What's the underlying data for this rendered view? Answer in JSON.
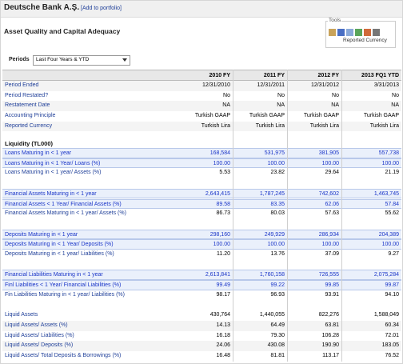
{
  "header": {
    "company": "Deutsche Bank A.Ş.",
    "portfolio_link": "[Add to portfolio]",
    "title": "Asset Quality and Capital Adequacy",
    "tools_label": "Tools",
    "tools_currency": "Reported Currency",
    "periods_label": "Periods",
    "periods_value": "Last Four Years & YTD"
  },
  "table": {
    "columns": [
      "2010 FY",
      "2011 FY",
      "2012 FY",
      "2013 FQ1 YTD"
    ],
    "period_rows": [
      {
        "label": "Period Ended",
        "values": [
          "12/31/2010",
          "12/31/2011",
          "12/31/2012",
          "3/31/2013"
        ]
      },
      {
        "label": "Period Restated?",
        "values": [
          "No",
          "No",
          "No",
          "No"
        ]
      },
      {
        "label": "Restatement Date",
        "values": [
          "NA",
          "NA",
          "NA",
          "NA"
        ]
      },
      {
        "label": "Accounting Principle",
        "values": [
          "Turkish GAAP",
          "Turkish GAAP",
          "Turkish GAAP",
          "Turkish GAAP"
        ]
      },
      {
        "label": "Reported Currency",
        "values": [
          "Turkish Lira",
          "Turkish Lira",
          "Turkish Lira",
          "Turkish Lira"
        ]
      }
    ],
    "section_title": "Liquidity (TL000)",
    "groups": [
      {
        "rows": [
          {
            "label": "Loans Maturing in < 1 year",
            "values": [
              "168,584",
              "531,975",
              "381,905",
              "557,738"
            ],
            "highlight": true
          },
          {
            "label": "Loans Maturing in < 1 Year/ Loans (%)",
            "values": [
              "100.00",
              "100.00",
              "100.00",
              "100.00"
            ],
            "highlight": true
          },
          {
            "label": "Loans Maturing in < 1 year/ Assets (%)",
            "values": [
              "5.53",
              "23.82",
              "29.64",
              "21.19"
            ],
            "highlight": false
          }
        ]
      },
      {
        "rows": [
          {
            "label": "Financial Assets Maturing in < 1 year",
            "values": [
              "2,643,415",
              "1,787,245",
              "742,602",
              "1,463,745"
            ],
            "highlight": true
          },
          {
            "label": "Financial Assets < 1 Year/ Financial Assets (%)",
            "values": [
              "89.58",
              "83.35",
              "62.06",
              "57.84"
            ],
            "highlight": true
          },
          {
            "label": "Financial Assets Maturing in < 1 year/ Assets (%)",
            "values": [
              "86.73",
              "80.03",
              "57.63",
              "55.62"
            ],
            "highlight": false
          }
        ]
      },
      {
        "rows": [
          {
            "label": "Deposits Maturing in < 1 year",
            "values": [
              "298,160",
              "249,929",
              "286,934",
              "204,389"
            ],
            "highlight": true
          },
          {
            "label": "Deposits Maturing in < 1 Year/ Deposits (%)",
            "values": [
              "100.00",
              "100.00",
              "100.00",
              "100.00"
            ],
            "highlight": true
          },
          {
            "label": "Deposits Maturing in < 1 year/ Liabilities (%)",
            "values": [
              "11.20",
              "13.76",
              "37.09",
              "9.27"
            ],
            "highlight": false
          }
        ]
      },
      {
        "rows": [
          {
            "label": "Financial Liabilities Maturing in < 1 year",
            "values": [
              "2,613,841",
              "1,760,158",
              "726,555",
              "2,075,284"
            ],
            "highlight": true
          },
          {
            "label": "Finl Liabilities < 1 Year/ Financial Liabilities (%)",
            "values": [
              "99.49",
              "99.22",
              "99.85",
              "99.87"
            ],
            "highlight": true
          },
          {
            "label": "Fin Liabilities Maturing in < 1 year/ Liabilities (%)",
            "values": [
              "98.17",
              "96.93",
              "93.91",
              "94.10"
            ],
            "highlight": false
          }
        ]
      },
      {
        "rows": [
          {
            "label": "Liquid Assets",
            "values": [
              "430,764",
              "1,440,055",
              "822,276",
              "1,588,049"
            ],
            "highlight": false
          },
          {
            "label": "Liquid Assets/ Assets (%)",
            "values": [
              "14.13",
              "64.49",
              "63.81",
              "60.34"
            ],
            "highlight": false
          },
          {
            "label": "Liquid Assets/ Liabilities (%)",
            "values": [
              "16.18",
              "79.30",
              "106.28",
              "72.01"
            ],
            "highlight": false
          },
          {
            "label": "Liquid Assets/ Deposits (%)",
            "values": [
              "24.06",
              "430.08",
              "190.90",
              "183.05"
            ],
            "highlight": false
          },
          {
            "label": "Liquid Assets/ Total Deposits & Borrowings (%)",
            "values": [
              "16.48",
              "81.81",
              "113.17",
              "76.52"
            ],
            "highlight": false
          }
        ]
      }
    ]
  }
}
